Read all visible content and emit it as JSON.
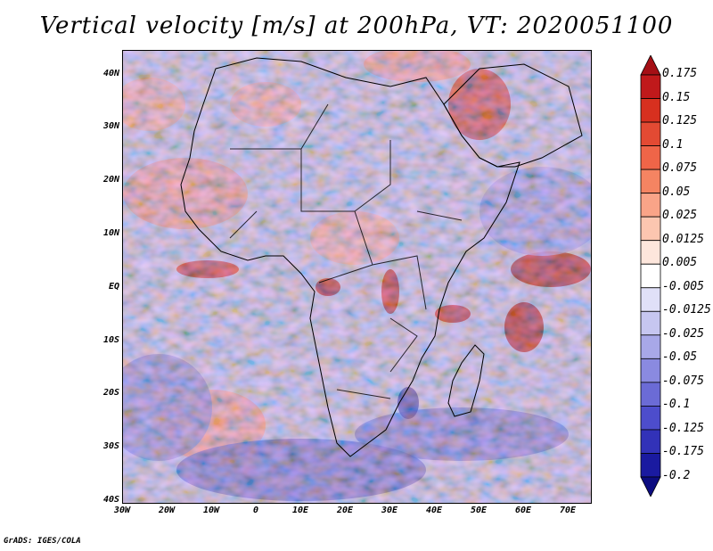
{
  "title": "Vertical velocity [m/s] at 200hPa, VT: 2020051100",
  "footer": "GrADS: IGES/COLA",
  "map": {
    "type": "filled-contour map",
    "variable": "Vertical velocity",
    "units": "m/s",
    "level": "200hPa",
    "valid_time": "2020051100",
    "lat_labels": [
      "40N",
      "30N",
      "20N",
      "10N",
      "EQ",
      "10S",
      "20S",
      "30S",
      "40S"
    ],
    "lon_labels": [
      "30W",
      "20W",
      "10W",
      "0",
      "10E",
      "20E",
      "30E",
      "40E",
      "50E",
      "60E",
      "70E"
    ],
    "lat_range": [
      -40,
      45
    ],
    "lon_range": [
      -30,
      75
    ]
  },
  "colorbar": {
    "labels": [
      "0.175",
      "0.15",
      "0.125",
      "0.1",
      "0.075",
      "0.05",
      "0.025",
      "0.0125",
      "0.005",
      "-0.005",
      "-0.0125",
      "-0.025",
      "-0.05",
      "-0.075",
      "-0.1",
      "-0.125",
      "-0.175",
      "-0.2"
    ],
    "colors": [
      "#a50f15",
      "#c0191b",
      "#d7301f",
      "#e34a33",
      "#ef6548",
      "#f58462",
      "#f9a488",
      "#fcc6b0",
      "#fde6dc",
      "#ffffff",
      "#e0e0f8",
      "#c6c6f0",
      "#a8a8e8",
      "#8a8ae0",
      "#6b6bd6",
      "#4d4dcc",
      "#3232b8",
      "#1a1aa0",
      "#0c0c80"
    ]
  }
}
